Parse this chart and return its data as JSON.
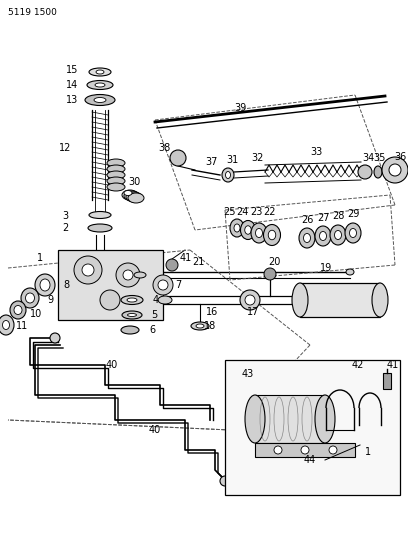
{
  "bg_color": "#ffffff",
  "fg_color": "#000000",
  "fig_width": 4.08,
  "fig_height": 5.33,
  "dpi": 100,
  "header": "5119 1500"
}
